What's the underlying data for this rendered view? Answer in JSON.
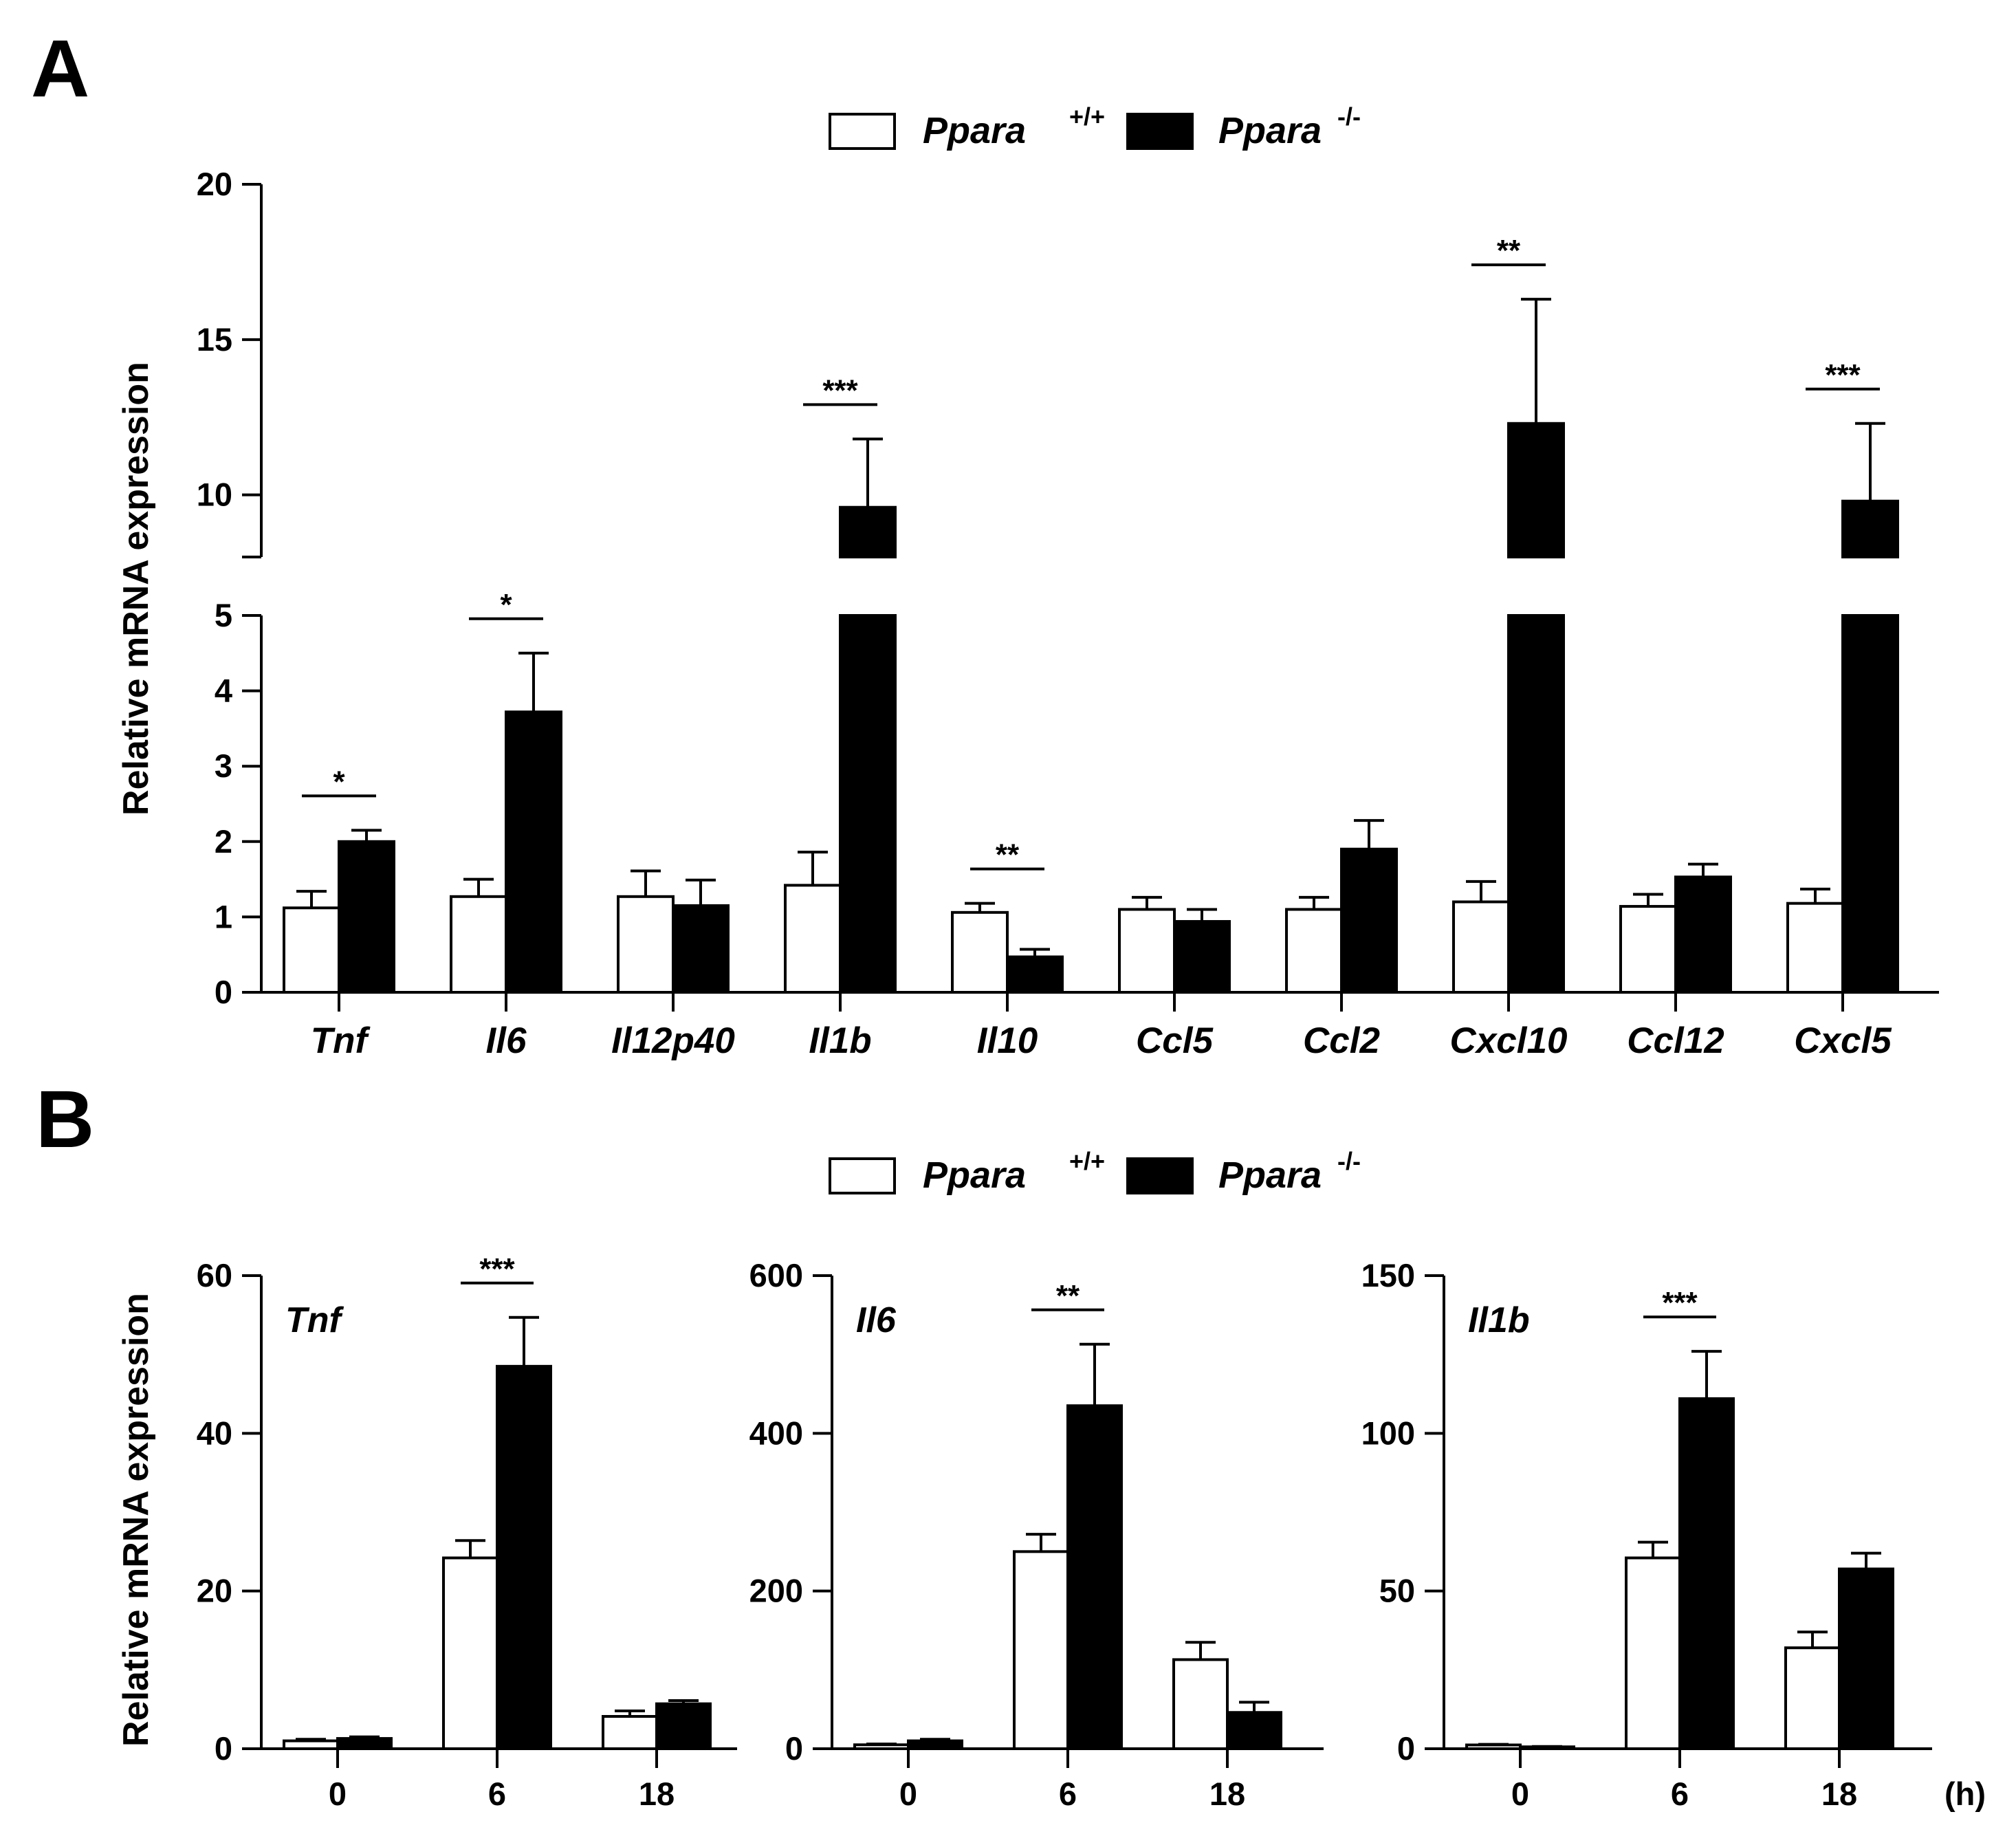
{
  "panel_labels": {
    "a": "A",
    "b": "B"
  },
  "colors": {
    "wild_type": "#ffffff",
    "knockout": "#000000",
    "stroke": "#000000"
  },
  "chart_data": [
    {
      "id": "A",
      "type": "bar",
      "title": "",
      "xlabel": "",
      "ylabel": "Relative mRNA expression",
      "broken_y_axis": true,
      "y_lower_range": [
        0,
        5
      ],
      "y_upper_range": [
        8,
        20
      ],
      "y_lower_ticks": [
        "0",
        "1",
        "2",
        "3",
        "4",
        "5"
      ],
      "y_upper_ticks": [
        "10",
        "15",
        "20"
      ],
      "legend": {
        "position": "top-center",
        "entries": [
          {
            "name": "Ppara",
            "sup": "+/+"
          },
          {
            "name": "Ppara",
            "sup": "-/-"
          }
        ]
      },
      "categories": [
        "Tnf",
        "Il6",
        "Il12p40",
        "Il1b",
        "Il10",
        "Ccl5",
        "Ccl2",
        "Cxcl10",
        "Ccl12",
        "Cxcl5"
      ],
      "series": [
        {
          "name": "Ppara +/+",
          "values": [
            1.12,
            1.27,
            1.27,
            1.42,
            1.06,
            1.1,
            1.1,
            1.2,
            1.14,
            1.18
          ],
          "errors": [
            0.22,
            0.23,
            0.34,
            0.44,
            0.12,
            0.16,
            0.16,
            0.27,
            0.16,
            0.19
          ]
        },
        {
          "name": "Ppara -/-",
          "values": [
            2.0,
            3.72,
            1.15,
            9.6,
            0.47,
            0.94,
            1.9,
            12.3,
            1.53,
            9.8
          ],
          "errors": [
            0.15,
            0.78,
            0.34,
            2.2,
            0.1,
            0.16,
            0.38,
            4.0,
            0.17,
            2.5
          ]
        }
      ],
      "significance": [
        {
          "category": "Tnf",
          "label": "*"
        },
        {
          "category": "Il6",
          "label": "*"
        },
        {
          "category": "Il1b",
          "label": "***"
        },
        {
          "category": "Il10",
          "label": "**"
        },
        {
          "category": "Cxcl10",
          "label": "**"
        },
        {
          "category": "Cxcl5",
          "label": "***"
        }
      ]
    },
    {
      "id": "B",
      "type": "bar",
      "ylabel": "Relative mRNA expression",
      "legend": {
        "position": "top-center",
        "entries": [
          {
            "name": "Ppara",
            "sup": "+/+"
          },
          {
            "name": "Ppara",
            "sup": "-/-"
          }
        ]
      },
      "x_unit": "(h)",
      "subplots": [
        {
          "gene": "Tnf",
          "categories": [
            "0",
            "6",
            "18"
          ],
          "ylim": [
            0,
            60
          ],
          "yticks": [
            "0",
            "20",
            "40",
            "60"
          ],
          "series": [
            {
              "name": "Ppara +/+",
              "values": [
                1.0,
                24.2,
                4.1
              ],
              "errors": [
                0.2,
                2.2,
                0.7
              ]
            },
            {
              "name": "Ppara -/-",
              "values": [
                1.3,
                48.5,
                5.7
              ],
              "errors": [
                0.2,
                6.2,
                0.4
              ]
            }
          ],
          "significance": [
            {
              "category": "6",
              "label": "***"
            }
          ]
        },
        {
          "gene": "Il6",
          "categories": [
            "0",
            "6",
            "18"
          ],
          "ylim": [
            0,
            600
          ],
          "yticks": [
            "0",
            "200",
            "400",
            "600"
          ],
          "series": [
            {
              "name": "Ppara +/+",
              "values": [
                5,
                250,
                113
              ],
              "errors": [
                1,
                22,
                22
              ]
            },
            {
              "name": "Ppara -/-",
              "values": [
                10,
                435,
                46
              ],
              "errors": [
                2,
                78,
                13
              ]
            }
          ],
          "significance": [
            {
              "category": "6",
              "label": "**"
            }
          ]
        },
        {
          "gene": "Il1b",
          "categories": [
            "0",
            "6",
            "18"
          ],
          "ylim": [
            0,
            150
          ],
          "yticks": [
            "0",
            "50",
            "100",
            "150"
          ],
          "series": [
            {
              "name": "Ppara +/+",
              "values": [
                1.2,
                60.5,
                32
              ],
              "errors": [
                0.2,
                5,
                5
              ]
            },
            {
              "name": "Ppara -/-",
              "values": [
                0.6,
                111,
                57
              ],
              "errors": [
                0.1,
                15,
                5
              ]
            }
          ],
          "significance": [
            {
              "category": "6",
              "label": "***"
            }
          ]
        }
      ]
    }
  ]
}
